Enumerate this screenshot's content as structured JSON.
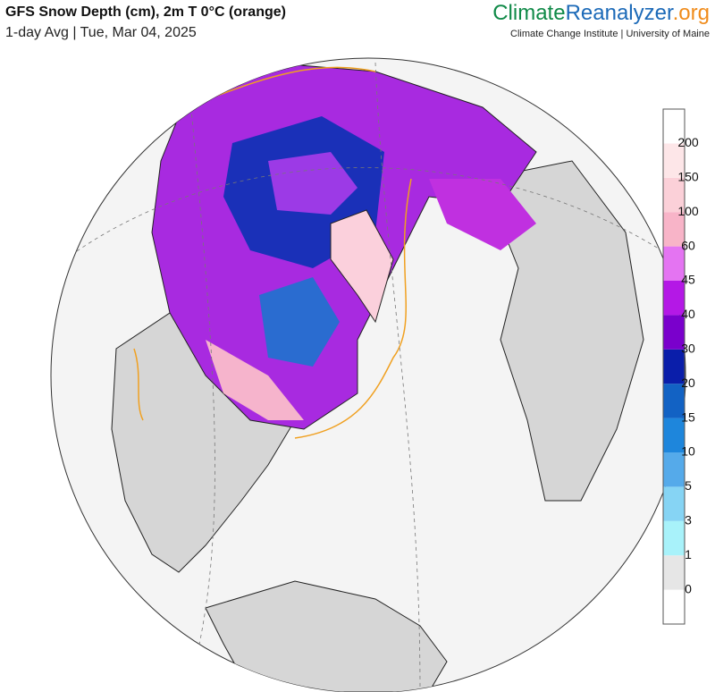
{
  "header": {
    "title": "GFS Snow Depth (cm), 2m T 0°C (orange)",
    "subtitle": "1-day Avg | Tue, Mar 04, 2025"
  },
  "brand": {
    "part1": "Climate",
    "part2": "Reanalyzer",
    "part3": ".org",
    "tagline": "Climate Change Institute | University of Maine"
  },
  "legend": {
    "labels": [
      0,
      1,
      3,
      5,
      10,
      15,
      20,
      30,
      40,
      45,
      60,
      100,
      150,
      200
    ],
    "colors": [
      "#ffffff",
      "#e6e6e6",
      "#a8f2fa",
      "#86d4f4",
      "#55aaea",
      "#1e86dc",
      "#1262c4",
      "#0a1eaa",
      "#7a00cc",
      "#b418e6",
      "#e474f2",
      "#f8b4c8",
      "#fbd0d8",
      "#fde6e8",
      "#ffffff"
    ]
  }
}
